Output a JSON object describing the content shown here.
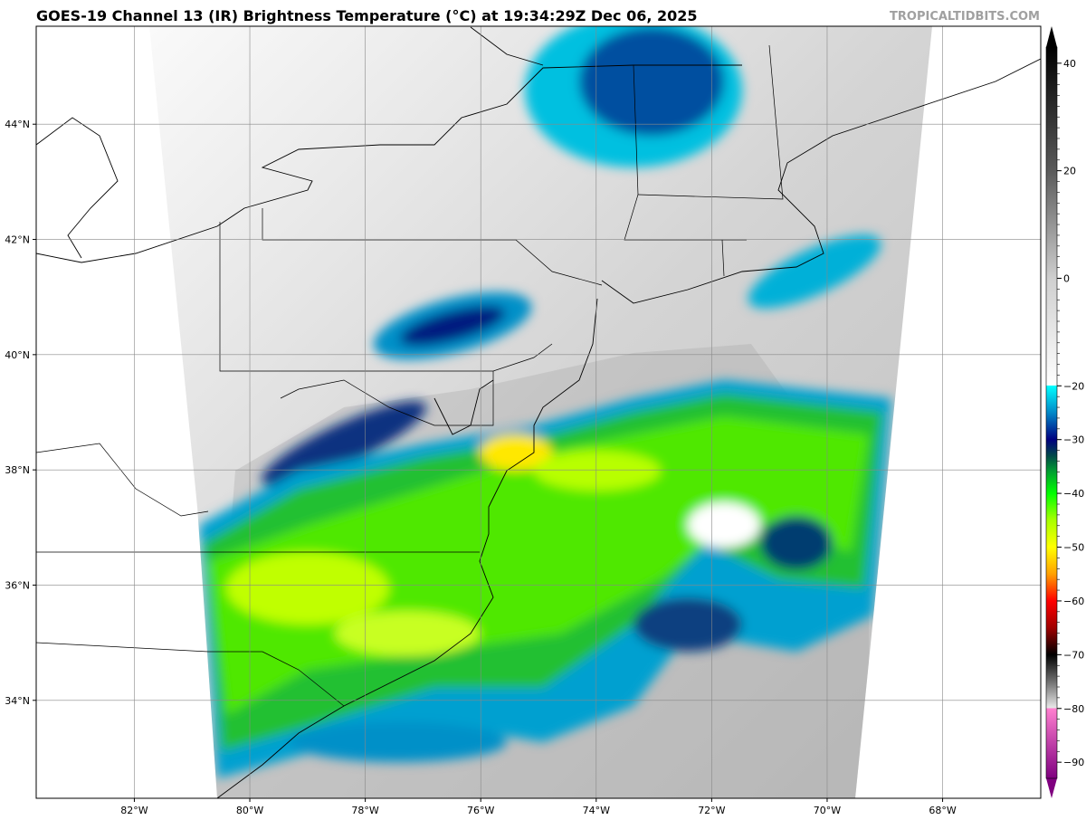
{
  "title": "GOES-19 Channel 13 (IR) Brightness Temperature (°C) at 19:34:29Z Dec 06, 2025",
  "watermark": "TROPICALTIDBITS.COM",
  "map": {
    "lon_labels": [
      "82°W",
      "80°W",
      "78°W",
      "76°W",
      "74°W",
      "72°W",
      "70°W",
      "68°W"
    ],
    "lon_values": [
      -82,
      -80,
      -78,
      -76,
      -74,
      -72,
      -70,
      -68
    ],
    "lat_labels": [
      "44°N",
      "42°N",
      "40°N",
      "38°N",
      "36°N",
      "34°N"
    ],
    "lat_values": [
      44,
      42,
      40,
      38,
      36,
      34
    ],
    "extent": {
      "lon_min": -83.7,
      "lon_max": -66.3,
      "lat_min": 32.3,
      "lat_max": 45.7
    }
  },
  "colorbar": {
    "tick_labels": [
      "40",
      "20",
      "0",
      "−20",
      "−30",
      "−40",
      "−50",
      "−60",
      "−70",
      "−80",
      "−90"
    ],
    "tick_values": [
      40,
      20,
      0,
      -20,
      -30,
      -40,
      -50,
      -60,
      -70,
      -80,
      -90
    ],
    "range": [
      -93,
      43
    ],
    "stops": [
      {
        "t": 43,
        "c": "#000000"
      },
      {
        "t": 20,
        "c": "#5a5a5a"
      },
      {
        "t": 0,
        "c": "#cfcfcf"
      },
      {
        "t": -19.9,
        "c": "#ffffff"
      },
      {
        "t": -20,
        "c": "#00ffff"
      },
      {
        "t": -25,
        "c": "#0088c8"
      },
      {
        "t": -30,
        "c": "#000080"
      },
      {
        "t": -33,
        "c": "#004848"
      },
      {
        "t": -36,
        "c": "#00a030"
      },
      {
        "t": -40,
        "c": "#00ff00"
      },
      {
        "t": -45,
        "c": "#a8ff00"
      },
      {
        "t": -50,
        "c": "#ffff00"
      },
      {
        "t": -55,
        "c": "#ffa000"
      },
      {
        "t": -60,
        "c": "#ff0000"
      },
      {
        "t": -65,
        "c": "#a00000"
      },
      {
        "t": -68,
        "c": "#400000"
      },
      {
        "t": -70,
        "c": "#000000"
      },
      {
        "t": -75,
        "c": "#707070"
      },
      {
        "t": -79.9,
        "c": "#e8e8e8"
      },
      {
        "t": -80,
        "c": "#ff80d0"
      },
      {
        "t": -93,
        "c": "#800080"
      }
    ]
  }
}
